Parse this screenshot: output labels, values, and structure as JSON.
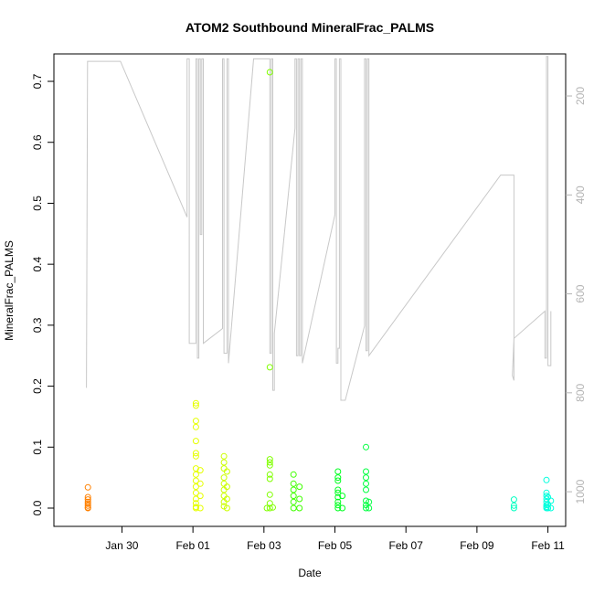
{
  "chart_data": {
    "type": "scatter",
    "title": "ATOM2 Southbound MineralFrac_PALMS",
    "xlabel": "Date",
    "ylabel": "MineralFrac_PALMS",
    "xlim": [
      "2017-01-28T02:00",
      "2017-02-11T12:00"
    ],
    "ylim": [
      -0.03,
      0.745
    ],
    "x_ticks": [
      {
        "label": "Jan 30",
        "date": "2017-01-30"
      },
      {
        "label": "Feb 01",
        "date": "2017-02-01"
      },
      {
        "label": "Feb 03",
        "date": "2017-02-03"
      },
      {
        "label": "Feb 05",
        "date": "2017-02-05"
      },
      {
        "label": "Feb 07",
        "date": "2017-02-07"
      },
      {
        "label": "Feb 09",
        "date": "2017-02-09"
      },
      {
        "label": "Feb 11",
        "date": "2017-02-11"
      }
    ],
    "y_ticks": [
      0.0,
      0.1,
      0.2,
      0.3,
      0.4,
      0.5,
      0.6,
      0.7
    ],
    "y_tick_labels": [
      "0.0",
      "0.1",
      "0.2",
      "0.3",
      "0.4",
      "0.5",
      "0.6",
      "0.7"
    ],
    "y2_ticks": [
      200,
      400,
      600,
      800,
      1000
    ],
    "y2_tick_labels": [
      "200",
      "400",
      "600",
      "800",
      "1000"
    ],
    "y2lim": [
      1070,
      115
    ],
    "y2_color": "#b4b4b4",
    "grid": false,
    "legend": "none",
    "point_series": [
      {
        "color": "#ff8000",
        "points": [
          [
            "2017-01-29T01:00",
            0.034
          ],
          [
            "2017-01-29T01:00",
            0.018
          ],
          [
            "2017-01-29T01:00",
            0.014
          ],
          [
            "2017-01-29T01:00",
            0.01
          ],
          [
            "2017-01-29T01:00",
            0.007
          ],
          [
            "2017-01-29T01:00",
            0.004
          ],
          [
            "2017-01-29T01:00",
            0.001
          ],
          [
            "2017-01-29T01:00",
            0.0
          ]
        ]
      },
      {
        "color": "#e6ff00",
        "points": [
          [
            "2017-02-01T02:00",
            0.172
          ],
          [
            "2017-02-01T02:00",
            0.168
          ],
          [
            "2017-02-01T02:00",
            0.143
          ],
          [
            "2017-02-01T02:00",
            0.133
          ],
          [
            "2017-02-01T02:00",
            0.11
          ],
          [
            "2017-02-01T02:00",
            0.09
          ],
          [
            "2017-02-01T02:00",
            0.085
          ],
          [
            "2017-02-01T02:00",
            0.065
          ],
          [
            "2017-02-01T02:00",
            0.055
          ],
          [
            "2017-02-01T02:00",
            0.045
          ],
          [
            "2017-02-01T02:00",
            0.035
          ],
          [
            "2017-02-01T02:00",
            0.025
          ],
          [
            "2017-02-01T02:00",
            0.015
          ],
          [
            "2017-02-01T02:00",
            0.008
          ],
          [
            "2017-02-01T02:00",
            0.002
          ],
          [
            "2017-02-01T02:00",
            0.0
          ],
          [
            "2017-02-01T05:00",
            0.062
          ],
          [
            "2017-02-01T05:00",
            0.04
          ],
          [
            "2017-02-01T05:00",
            0.02
          ],
          [
            "2017-02-01T05:00",
            0.0
          ]
        ]
      },
      {
        "color": "#ccff00",
        "points": [
          [
            "2017-02-01T21:00",
            0.085
          ],
          [
            "2017-02-01T21:00",
            0.075
          ],
          [
            "2017-02-01T21:00",
            0.065
          ],
          [
            "2017-02-01T21:00",
            0.05
          ],
          [
            "2017-02-01T21:00",
            0.04
          ],
          [
            "2017-02-01T21:00",
            0.03
          ],
          [
            "2017-02-01T21:00",
            0.02
          ],
          [
            "2017-02-01T21:00",
            0.01
          ],
          [
            "2017-02-01T21:00",
            0.003
          ],
          [
            "2017-02-01T23:00",
            0.06
          ],
          [
            "2017-02-01T23:00",
            0.035
          ],
          [
            "2017-02-01T23:00",
            0.015
          ],
          [
            "2017-02-01T23:00",
            0.0
          ]
        ]
      },
      {
        "color": "#80ff00",
        "points": [
          [
            "2017-02-03T04:00",
            0.715
          ],
          [
            "2017-02-03T04:00",
            0.231
          ],
          [
            "2017-02-03T04:00",
            0.08
          ],
          [
            "2017-02-03T04:00",
            0.075
          ],
          [
            "2017-02-03T04:00",
            0.07
          ],
          [
            "2017-02-03T04:00",
            0.055
          ],
          [
            "2017-02-03T04:00",
            0.048
          ],
          [
            "2017-02-03T04:00",
            0.022
          ],
          [
            "2017-02-03T04:00",
            0.008
          ],
          [
            "2017-02-03T04:00",
            0.0
          ],
          [
            "2017-02-03T02:00",
            0.0
          ],
          [
            "2017-02-03T06:00",
            0.001
          ]
        ]
      },
      {
        "color": "#40ff00",
        "points": [
          [
            "2017-02-03T20:00",
            0.055
          ],
          [
            "2017-02-03T20:00",
            0.04
          ],
          [
            "2017-02-03T20:00",
            0.03
          ],
          [
            "2017-02-03T20:00",
            0.02
          ],
          [
            "2017-02-03T20:00",
            0.01
          ],
          [
            "2017-02-03T20:00",
            0.0
          ],
          [
            "2017-02-04T00:00",
            0.035
          ],
          [
            "2017-02-04T00:00",
            0.015
          ],
          [
            "2017-02-04T00:00",
            0.0
          ]
        ]
      },
      {
        "color": "#00ff20",
        "points": [
          [
            "2017-02-05T02:00",
            0.06
          ],
          [
            "2017-02-05T02:00",
            0.05
          ],
          [
            "2017-02-05T02:00",
            0.045
          ],
          [
            "2017-02-05T02:00",
            0.03
          ],
          [
            "2017-02-05T02:00",
            0.025
          ],
          [
            "2017-02-05T02:00",
            0.018
          ],
          [
            "2017-02-05T02:00",
            0.01
          ],
          [
            "2017-02-05T02:00",
            0.005
          ],
          [
            "2017-02-05T02:00",
            0.0
          ],
          [
            "2017-02-05T05:00",
            0.02
          ],
          [
            "2017-02-05T05:00",
            0.0
          ]
        ]
      },
      {
        "color": "#00ff40",
        "points": [
          [
            "2017-02-05T21:00",
            0.1
          ],
          [
            "2017-02-05T21:00",
            0.06
          ],
          [
            "2017-02-05T21:00",
            0.05
          ],
          [
            "2017-02-05T21:00",
            0.04
          ],
          [
            "2017-02-05T21:00",
            0.03
          ],
          [
            "2017-02-05T21:00",
            0.012
          ],
          [
            "2017-02-05T21:00",
            0.005
          ],
          [
            "2017-02-05T21:00",
            0.0
          ],
          [
            "2017-02-05T23:00",
            0.01
          ],
          [
            "2017-02-05T23:00",
            0.0
          ]
        ]
      },
      {
        "color": "#00ffc0",
        "points": [
          [
            "2017-02-10T01:00",
            0.014
          ],
          [
            "2017-02-10T01:00",
            0.004
          ],
          [
            "2017-02-10T01:00",
            0.0
          ]
        ]
      },
      {
        "color": "#00ffdd",
        "points": [
          [
            "2017-02-10T23:00",
            0.046
          ],
          [
            "2017-02-10T23:00",
            0.025
          ],
          [
            "2017-02-10T23:00",
            0.02
          ],
          [
            "2017-02-10T23:00",
            0.015
          ],
          [
            "2017-02-10T23:00",
            0.01
          ],
          [
            "2017-02-10T23:00",
            0.005
          ],
          [
            "2017-02-10T23:00",
            0.002
          ],
          [
            "2017-02-10T23:00",
            0.0
          ],
          [
            "2017-02-11T00:00",
            0.018
          ],
          [
            "2017-02-11T00:00",
            0.006
          ],
          [
            "2017-02-11T00:00",
            0.0
          ],
          [
            "2017-02-11T02:00",
            0.012
          ],
          [
            "2017-02-11T02:00",
            0.0
          ]
        ]
      }
    ],
    "line_series": {
      "color": "#c8c8c8",
      "axis": "y2",
      "points": [
        [
          "2017-01-29T00:00",
          790
        ],
        [
          "2017-01-29T00:45",
          130
        ],
        [
          "2017-01-29T01:30",
          130
        ],
        [
          "2017-01-29T03:00",
          130
        ],
        [
          "2017-01-29T23:00",
          130
        ],
        [
          "2017-01-31T20:00",
          445
        ],
        [
          "2017-01-31T20:00",
          125
        ],
        [
          "2017-01-31T21:30",
          125
        ],
        [
          "2017-01-31T21:30",
          700
        ],
        [
          "2017-02-01T02:00",
          700
        ],
        [
          "2017-02-01T02:00",
          125
        ],
        [
          "2017-02-01T03:00",
          125
        ],
        [
          "2017-02-01T03:00",
          730
        ],
        [
          "2017-02-01T04:00",
          730
        ],
        [
          "2017-02-01T04:00",
          125
        ],
        [
          "2017-02-01T05:00",
          125
        ],
        [
          "2017-02-01T05:00",
          480
        ],
        [
          "2017-02-01T06:00",
          480
        ],
        [
          "2017-02-01T06:00",
          125
        ],
        [
          "2017-02-01T07:00",
          125
        ],
        [
          "2017-02-01T07:00",
          700
        ],
        [
          "2017-02-01T20:00",
          670
        ],
        [
          "2017-02-01T20:00",
          125
        ],
        [
          "2017-02-01T21:00",
          125
        ],
        [
          "2017-02-01T21:00",
          720
        ],
        [
          "2017-02-01T23:00",
          720
        ],
        [
          "2017-02-01T23:00",
          125
        ],
        [
          "2017-02-02T00:00",
          125
        ],
        [
          "2017-02-02T00:00",
          740
        ],
        [
          "2017-02-02T17:00",
          125
        ],
        [
          "2017-02-02T22:00",
          125
        ],
        [
          "2017-02-03T04:00",
          125
        ],
        [
          "2017-02-03T04:00",
          720
        ],
        [
          "2017-02-03T05:00",
          720
        ],
        [
          "2017-02-03T05:00",
          125
        ],
        [
          "2017-02-03T06:00",
          125
        ],
        [
          "2017-02-03T06:00",
          795
        ],
        [
          "2017-02-03T07:00",
          795
        ],
        [
          "2017-02-03T07:00",
          680
        ],
        [
          "2017-02-03T21:00",
          265
        ],
        [
          "2017-02-03T21:00",
          125
        ],
        [
          "2017-02-03T22:00",
          125
        ],
        [
          "2017-02-03T22:00",
          725
        ],
        [
          "2017-02-03T23:00",
          725
        ],
        [
          "2017-02-03T23:00",
          125
        ],
        [
          "2017-02-04T00:00",
          125
        ],
        [
          "2017-02-04T00:00",
          725
        ],
        [
          "2017-02-04T01:00",
          725
        ],
        [
          "2017-02-04T01:00",
          125
        ],
        [
          "2017-02-04T02:00",
          125
        ],
        [
          "2017-02-04T02:00",
          740
        ],
        [
          "2017-02-05T00:00",
          440
        ],
        [
          "2017-02-05T00:00",
          125
        ],
        [
          "2017-02-05T01:00",
          125
        ],
        [
          "2017-02-05T01:00",
          740
        ],
        [
          "2017-02-05T02:00",
          740
        ],
        [
          "2017-02-05T02:00",
          710
        ],
        [
          "2017-02-05T03:00",
          710
        ],
        [
          "2017-02-05T03:00",
          125
        ],
        [
          "2017-02-05T04:00",
          125
        ],
        [
          "2017-02-05T04:00",
          815
        ],
        [
          "2017-02-05T07:00",
          815
        ],
        [
          "2017-02-05T20:00",
          665
        ],
        [
          "2017-02-05T20:00",
          125
        ],
        [
          "2017-02-05T21:00",
          125
        ],
        [
          "2017-02-05T21:00",
          715
        ],
        [
          "2017-02-05T22:00",
          715
        ],
        [
          "2017-02-05T22:00",
          125
        ],
        [
          "2017-02-05T23:00",
          125
        ],
        [
          "2017-02-05T23:00",
          725
        ],
        [
          "2017-02-09T16:00",
          360
        ],
        [
          "2017-02-10T00:00",
          360
        ],
        [
          "2017-02-10T01:00",
          360
        ],
        [
          "2017-02-10T01:00",
          775
        ],
        [
          "2017-02-10T00:00",
          765
        ],
        [
          "2017-02-10T01:00",
          690
        ],
        [
          "2017-02-10T22:00",
          635
        ],
        [
          "2017-02-10T22:00",
          730
        ],
        [
          "2017-02-10T23:00",
          730
        ],
        [
          "2017-02-10T23:00",
          120
        ],
        [
          "2017-02-11T00:00",
          120
        ],
        [
          "2017-02-11T00:00",
          745
        ],
        [
          "2017-02-11T02:00",
          745
        ],
        [
          "2017-02-11T02:00",
          635
        ]
      ]
    }
  }
}
